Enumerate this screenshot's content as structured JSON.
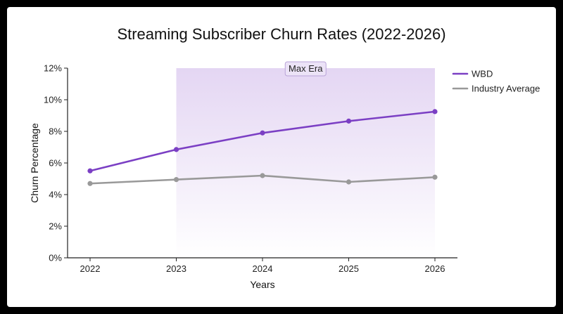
{
  "colors": {
    "wbd": "#7b3fc4",
    "industry": "#999999",
    "era_band_top": "#e4d6f3",
    "era_band_bottom": "#ffffff",
    "era_label_bg": "#ece3f7",
    "era_label_border": "#b9a3d8"
  },
  "chart_data": {
    "type": "line",
    "title": "Streaming Subscriber Churn Rates (2022-2026)",
    "xlabel": "Years",
    "ylabel": "Churn Percentage",
    "x": [
      2022,
      2023,
      2024,
      2025,
      2026
    ],
    "x_tick_labels": [
      "2022",
      "2023",
      "2024",
      "2025",
      "2026"
    ],
    "ylim": [
      0,
      12
    ],
    "y_ticks": [
      0,
      2,
      4,
      6,
      8,
      10,
      12
    ],
    "y_tick_labels": [
      "0%",
      "2%",
      "4%",
      "6%",
      "8%",
      "10%",
      "12%"
    ],
    "grid": false,
    "legend_position": "top-right",
    "series": [
      {
        "name": "WBD",
        "color": "#7b3fc4",
        "values": [
          5.5,
          6.85,
          7.9,
          8.65,
          9.25
        ]
      },
      {
        "name": "Industry Average",
        "color": "#999999",
        "values": [
          4.7,
          4.95,
          5.2,
          4.8,
          5.1
        ]
      }
    ],
    "annotations": [
      {
        "type": "shaded_region",
        "label": "Max Era",
        "x_start": 2023,
        "x_end": 2026
      }
    ]
  }
}
